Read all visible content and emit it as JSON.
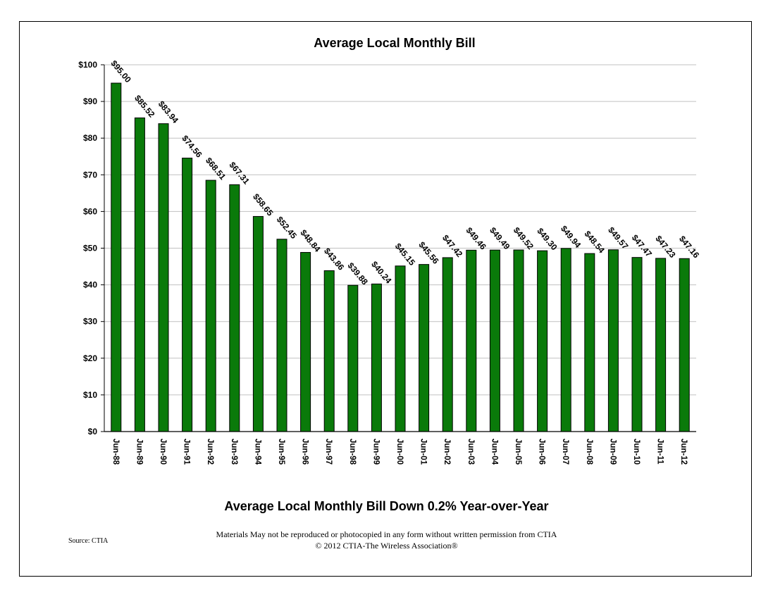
{
  "chart_data": {
    "type": "bar",
    "title": "Average Local Monthly Bill",
    "categories": [
      "Jun-88",
      "Jun-89",
      "Jun-90",
      "Jun-91",
      "Jun-92",
      "Jun-93",
      "Jun-94",
      "Jun-95",
      "Jun-96",
      "Jun-97",
      "Jun-98",
      "Jun-99",
      "Jun-00",
      "Jun-01",
      "Jun-02",
      "Jun-03",
      "Jun-04",
      "Jun-05",
      "Jun-06",
      "Jun-07",
      "Jun-08",
      "Jun-09",
      "Jun-10",
      "Jun-11",
      "Jun-12"
    ],
    "values": [
      95.0,
      85.52,
      83.94,
      74.56,
      68.51,
      67.31,
      58.65,
      52.45,
      48.84,
      43.86,
      39.88,
      40.24,
      45.15,
      45.56,
      47.42,
      49.46,
      49.49,
      49.52,
      49.3,
      49.94,
      48.54,
      49.57,
      47.47,
      47.23,
      47.16
    ],
    "data_labels": [
      "$95.00",
      "$85.52",
      "$83.94",
      "$74.56",
      "$68.51",
      "$67.31",
      "$58.65",
      "$52.45",
      "$48.84",
      "$43.86",
      "$39.88",
      "$40.24",
      "$45.15",
      "$45.56",
      "$47.42",
      "$49.46",
      "$49.49",
      "$49.52",
      "$49.30",
      "$49.94",
      "$48.54",
      "$49.57",
      "$47.47",
      "$47.23",
      "$47.16"
    ],
    "y_ticks": [
      "$0",
      "$10",
      "$20",
      "$30",
      "$40",
      "$50",
      "$60",
      "$70",
      "$80",
      "$90",
      "$100"
    ],
    "ylim": [
      0,
      100
    ],
    "xlabel": "",
    "ylabel": "",
    "grid": true,
    "bar_color": "#0a7a0a",
    "bar_edge_color": "#000000"
  },
  "subtitle": "Average Local Monthly Bill Down 0.2% Year-over-Year",
  "source": "Source: CTIA",
  "notice_line1": "Materials May not be reproduced or photocopied in any form without written permission from CTIA",
  "notice_line2": "© 2012 CTIA-The Wireless Association®"
}
